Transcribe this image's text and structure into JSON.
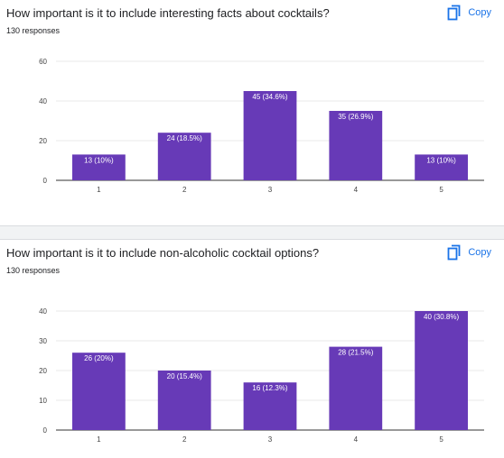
{
  "cards": [
    {
      "question": "How important is it to include interesting facts about cocktails?",
      "responses": "130 responses",
      "copy_label": "Copy"
    },
    {
      "question": "How important is it to include non-alcoholic cocktail options?",
      "responses": "130 responses",
      "copy_label": "Copy"
    }
  ],
  "colors": {
    "bar": "#673ab7",
    "accent": "#1a73e8",
    "grid": "#e8e8e8"
  },
  "icons": {
    "copy": "copy-icon"
  },
  "chart_data": [
    {
      "type": "bar",
      "categories": [
        "1",
        "2",
        "3",
        "4",
        "5"
      ],
      "values": [
        13,
        24,
        45,
        35,
        13
      ],
      "data_labels": [
        "13 (10%)",
        "24 (18.5%)",
        "45 (34.6%)",
        "35 (26.9%)",
        "13 (10%)"
      ],
      "yticks": [
        0,
        20,
        40,
        60
      ],
      "ylim": [
        0,
        60
      ],
      "grid": true
    },
    {
      "type": "bar",
      "categories": [
        "1",
        "2",
        "3",
        "4",
        "5"
      ],
      "values": [
        26,
        20,
        16,
        28,
        40
      ],
      "data_labels": [
        "26 (20%)",
        "20 (15.4%)",
        "16 (12.3%)",
        "28 (21.5%)",
        "40 (30.8%)"
      ],
      "yticks": [
        0,
        10,
        20,
        30,
        40
      ],
      "ylim": [
        0,
        40
      ],
      "grid": true
    }
  ]
}
